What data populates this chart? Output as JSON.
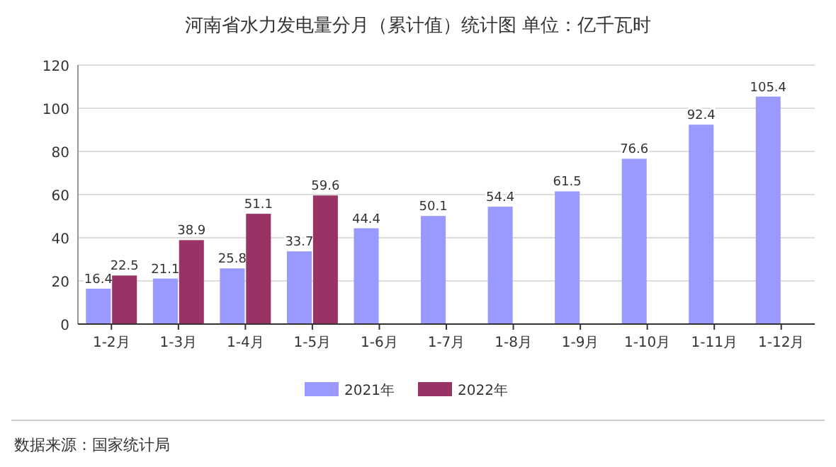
{
  "chart_data": {
    "type": "bar",
    "title": "河南省水力发电量分月（累计值）统计图 单位：亿千瓦时",
    "categories": [
      "1-2月",
      "1-3月",
      "1-4月",
      "1-5月",
      "1-6月",
      "1-7月",
      "1-8月",
      "1-9月",
      "1-10月",
      "1-11月",
      "1-12月"
    ],
    "series": [
      {
        "name": "2021年",
        "color": "#9999ff",
        "values": [
          16.4,
          21.1,
          25.8,
          33.7,
          44.4,
          50.1,
          54.4,
          61.5,
          76.6,
          92.4,
          105.4
        ]
      },
      {
        "name": "2022年",
        "color": "#993366",
        "values": [
          22.5,
          38.9,
          51.1,
          59.6,
          null,
          null,
          null,
          null,
          null,
          null,
          null
        ]
      }
    ],
    "ylim": [
      0,
      120
    ],
    "yticks": [
      0,
      20,
      40,
      60,
      80,
      100,
      120
    ],
    "grid": "y",
    "legend": "bottom",
    "data_labels": true,
    "annotations": [
      "数据来源：国家统计局"
    ]
  }
}
